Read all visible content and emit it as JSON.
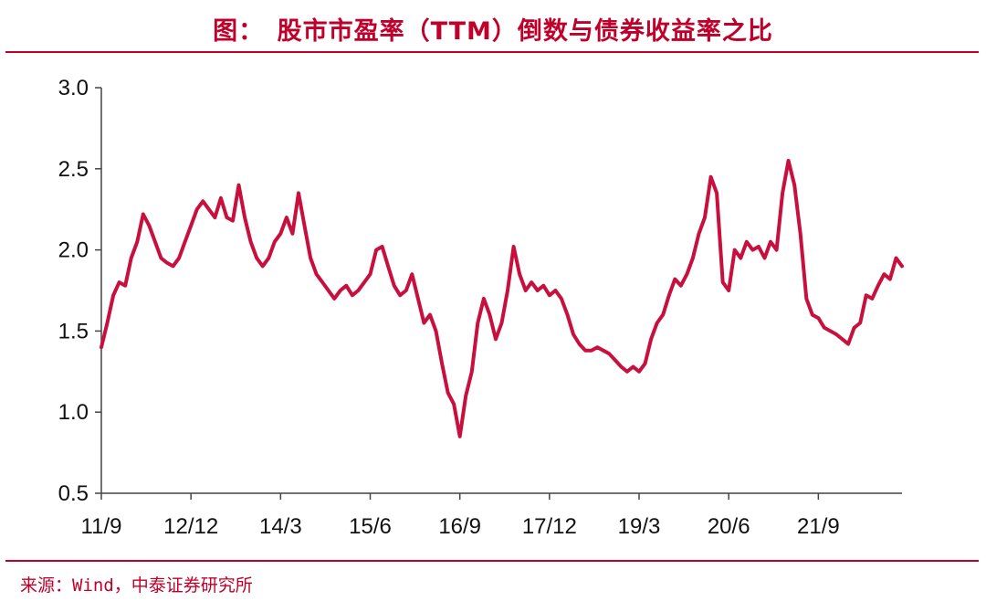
{
  "title": "图：　股市市盈率（TTM）倒数与债券收益率之比",
  "source": "来源：Wind，中泰证券研究所",
  "colors": {
    "line": "#c8103e",
    "accent": "#c0002a",
    "axis": "#444444"
  },
  "chart_data": {
    "type": "line",
    "title": "图：　股市市盈率（TTM）倒数与债券收益率之比",
    "xlabel": "",
    "ylabel": "",
    "ylim": [
      0.5,
      3.0
    ],
    "yticks": [
      "0.5",
      "1.0",
      "1.5",
      "2.0",
      "2.5",
      "3.0"
    ],
    "xticks": [
      "11/9",
      "12/12",
      "14/3",
      "15/6",
      "16/9",
      "17/12",
      "19/3",
      "20/6",
      "21/9"
    ],
    "grid": false,
    "legend": "none",
    "series": [
      {
        "name": "",
        "points": [
          [
            "11/9",
            1.4
          ],
          [
            "11/10",
            1.55
          ],
          [
            "11/11",
            1.72
          ],
          [
            "11/12",
            1.8
          ],
          [
            "12/1",
            1.78
          ],
          [
            "12/2",
            1.95
          ],
          [
            "12/3",
            2.05
          ],
          [
            "12/4",
            2.22
          ],
          [
            "12/5",
            2.15
          ],
          [
            "12/6",
            2.05
          ],
          [
            "12/7",
            1.95
          ],
          [
            "12/8",
            1.92
          ],
          [
            "12/9",
            1.9
          ],
          [
            "12/10",
            1.95
          ],
          [
            "12/11",
            2.05
          ],
          [
            "12/12",
            2.15
          ],
          [
            "13/1",
            2.25
          ],
          [
            "13/2",
            2.3
          ],
          [
            "13/3",
            2.25
          ],
          [
            "13/4",
            2.2
          ],
          [
            "13/5",
            2.32
          ],
          [
            "13/6",
            2.2
          ],
          [
            "13/7",
            2.18
          ],
          [
            "13/8",
            2.4
          ],
          [
            "13/9",
            2.2
          ],
          [
            "13/10",
            2.05
          ],
          [
            "13/11",
            1.95
          ],
          [
            "13/12",
            1.9
          ],
          [
            "14/1",
            1.95
          ],
          [
            "14/2",
            2.05
          ],
          [
            "14/3",
            2.1
          ],
          [
            "14/4",
            2.2
          ],
          [
            "14/5",
            2.1
          ],
          [
            "14/6",
            2.35
          ],
          [
            "14/7",
            2.15
          ],
          [
            "14/8",
            1.95
          ],
          [
            "14/9",
            1.85
          ],
          [
            "14/10",
            1.8
          ],
          [
            "14/11",
            1.75
          ],
          [
            "14/12",
            1.7
          ],
          [
            "15/1",
            1.75
          ],
          [
            "15/2",
            1.78
          ],
          [
            "15/3",
            1.72
          ],
          [
            "15/4",
            1.75
          ],
          [
            "15/5",
            1.8
          ],
          [
            "15/6",
            1.85
          ],
          [
            "15/7",
            2.0
          ],
          [
            "15/8",
            2.02
          ],
          [
            "15/9",
            1.9
          ],
          [
            "15/10",
            1.78
          ],
          [
            "15/11",
            1.72
          ],
          [
            "15/12",
            1.75
          ],
          [
            "16/1",
            1.85
          ],
          [
            "16/2",
            1.7
          ],
          [
            "16/3",
            1.55
          ],
          [
            "16/4",
            1.6
          ],
          [
            "16/5",
            1.5
          ],
          [
            "16/6",
            1.3
          ],
          [
            "16/7",
            1.12
          ],
          [
            "16/8",
            1.05
          ],
          [
            "16/9",
            0.85
          ],
          [
            "16/10",
            1.1
          ],
          [
            "16/11",
            1.25
          ],
          [
            "16/12",
            1.55
          ],
          [
            "17/1",
            1.7
          ],
          [
            "17/2",
            1.6
          ],
          [
            "17/3",
            1.45
          ],
          [
            "17/4",
            1.55
          ],
          [
            "17/5",
            1.75
          ],
          [
            "17/6",
            2.02
          ],
          [
            "17/7",
            1.85
          ],
          [
            "17/8",
            1.75
          ],
          [
            "17/9",
            1.8
          ],
          [
            "17/10",
            1.75
          ],
          [
            "17/11",
            1.78
          ],
          [
            "17/12",
            1.72
          ],
          [
            "18/1",
            1.75
          ],
          [
            "18/2",
            1.7
          ],
          [
            "18/3",
            1.6
          ],
          [
            "18/4",
            1.48
          ],
          [
            "18/5",
            1.42
          ],
          [
            "18/6",
            1.38
          ],
          [
            "18/7",
            1.38
          ],
          [
            "18/8",
            1.4
          ],
          [
            "18/9",
            1.38
          ],
          [
            "18/10",
            1.36
          ],
          [
            "18/11",
            1.32
          ],
          [
            "18/12",
            1.28
          ],
          [
            "19/1",
            1.25
          ],
          [
            "19/2",
            1.28
          ],
          [
            "19/3",
            1.25
          ],
          [
            "19/4",
            1.3
          ],
          [
            "19/5",
            1.45
          ],
          [
            "19/6",
            1.55
          ],
          [
            "19/7",
            1.6
          ],
          [
            "19/8",
            1.72
          ],
          [
            "19/9",
            1.82
          ],
          [
            "19/10",
            1.78
          ],
          [
            "19/11",
            1.85
          ],
          [
            "19/12",
            1.95
          ],
          [
            "20/1",
            2.1
          ],
          [
            "20/2",
            2.2
          ],
          [
            "20/3",
            2.45
          ],
          [
            "20/4",
            2.35
          ],
          [
            "20/5",
            1.8
          ],
          [
            "20/6",
            1.75
          ],
          [
            "20/7",
            2.0
          ],
          [
            "20/8",
            1.95
          ],
          [
            "20/9",
            2.05
          ],
          [
            "20/10",
            2.0
          ],
          [
            "20/11",
            2.02
          ],
          [
            "20/12",
            1.95
          ],
          [
            "21/1",
            2.05
          ],
          [
            "21/2",
            2.0
          ],
          [
            "21/3",
            2.35
          ],
          [
            "21/4",
            2.55
          ],
          [
            "21/5",
            2.4
          ],
          [
            "21/6",
            2.1
          ],
          [
            "21/7",
            1.7
          ],
          [
            "21/8",
            1.6
          ],
          [
            "21/9",
            1.58
          ],
          [
            "21/10",
            1.52
          ],
          [
            "21/11",
            1.5
          ],
          [
            "21/12",
            1.48
          ],
          [
            "22/1",
            1.45
          ],
          [
            "22/2",
            1.42
          ],
          [
            "22/3",
            1.52
          ],
          [
            "22/4",
            1.55
          ],
          [
            "22/5",
            1.72
          ],
          [
            "22/6",
            1.7
          ],
          [
            "22/7",
            1.78
          ],
          [
            "22/8",
            1.85
          ],
          [
            "22/9",
            1.82
          ],
          [
            "22/10",
            1.95
          ],
          [
            "22/11",
            1.9
          ]
        ]
      }
    ]
  }
}
